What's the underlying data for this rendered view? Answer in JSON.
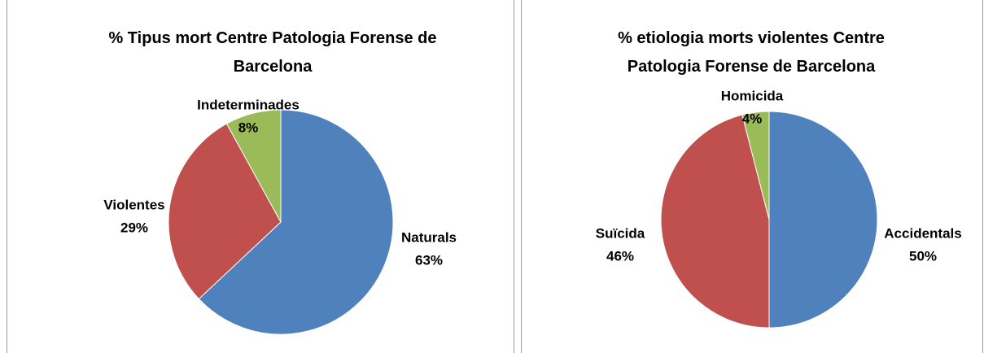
{
  "chart_data": [
    {
      "type": "pie",
      "title": "% Tipus mort Centre Patologia Forense de Barcelona",
      "categories": [
        "Naturals",
        "Violentes",
        "Indeterminades"
      ],
      "values": [
        63,
        29,
        8
      ],
      "value_labels": [
        "63%",
        "29%",
        "8%"
      ],
      "colors": [
        "#4f81bd",
        "#c0504d",
        "#9bbb59"
      ]
    },
    {
      "type": "pie",
      "title": "% etiologia morts violentes Centre Patologia Forense de Barcelona",
      "categories": [
        "Accidentals",
        "Suïcida",
        "Homicida"
      ],
      "values": [
        50,
        46,
        4
      ],
      "value_labels": [
        "50%",
        "46%",
        "4%"
      ],
      "colors": [
        "#4f81bd",
        "#c0504d",
        "#9bbb59"
      ]
    }
  ]
}
